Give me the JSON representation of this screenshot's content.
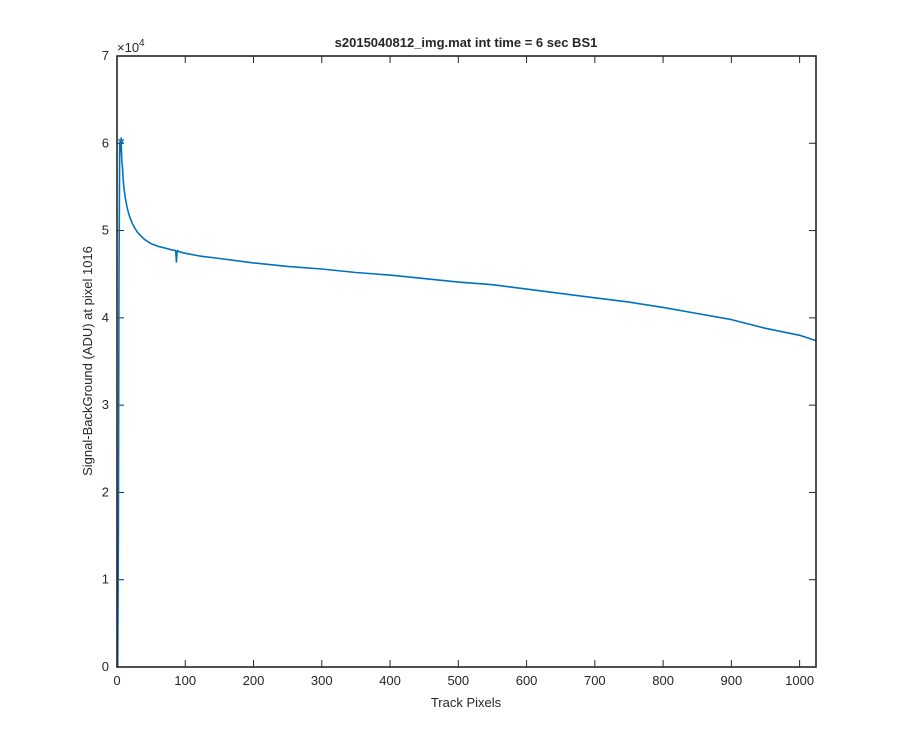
{
  "chart_data": {
    "type": "line",
    "title": "s2015040812_img.mat int time = 6 sec   BS1",
    "xlabel": "Track Pixels",
    "ylabel": "Signal-BackGround (ADU) at pixel 1016",
    "xlim": [
      0,
      1024
    ],
    "ylim": [
      0,
      70000
    ],
    "y_multiplier_label": {
      "base": "×10",
      "exponent": "4"
    },
    "x_ticks": [
      0,
      100,
      200,
      300,
      400,
      500,
      600,
      700,
      800,
      900,
      1000
    ],
    "x_tick_labels": [
      "0",
      "100",
      "200",
      "300",
      "400",
      "500",
      "600",
      "700",
      "800",
      "900",
      "1000"
    ],
    "y_ticks": [
      0,
      10000,
      20000,
      30000,
      40000,
      50000,
      60000,
      70000
    ],
    "y_tick_labels": [
      "0",
      "1",
      "2",
      "3",
      "4",
      "5",
      "6",
      "7"
    ],
    "grid": false,
    "line_color": "#0072bd",
    "series": [
      {
        "x": [
          1,
          2,
          3,
          4,
          5,
          6,
          7,
          8,
          9,
          10,
          12,
          15,
          18,
          22,
          26,
          30,
          35,
          40,
          50,
          60,
          70,
          80,
          86,
          87,
          88,
          89,
          90,
          100,
          120,
          150,
          200,
          250,
          300,
          350,
          400,
          450,
          500,
          550,
          600,
          650,
          700,
          750,
          800,
          850,
          900,
          950,
          1000,
          1024
        ],
        "y": [
          0,
          15000,
          45000,
          60000,
          59000,
          60300,
          58000,
          57200,
          56000,
          55000,
          53800,
          52600,
          51700,
          50900,
          50300,
          49800,
          49400,
          49000,
          48500,
          48200,
          48000,
          47800,
          47700,
          46400,
          47600,
          47700,
          47600,
          47400,
          47100,
          46800,
          46300,
          45900,
          45600,
          45200,
          44900,
          44500,
          44100,
          43800,
          43300,
          42800,
          42300,
          41800,
          41200,
          40500,
          39800,
          38800,
          38000,
          37400
        ]
      }
    ],
    "markers": [
      {
        "x": 6,
        "y": 60100,
        "symbol": "*"
      }
    ]
  }
}
